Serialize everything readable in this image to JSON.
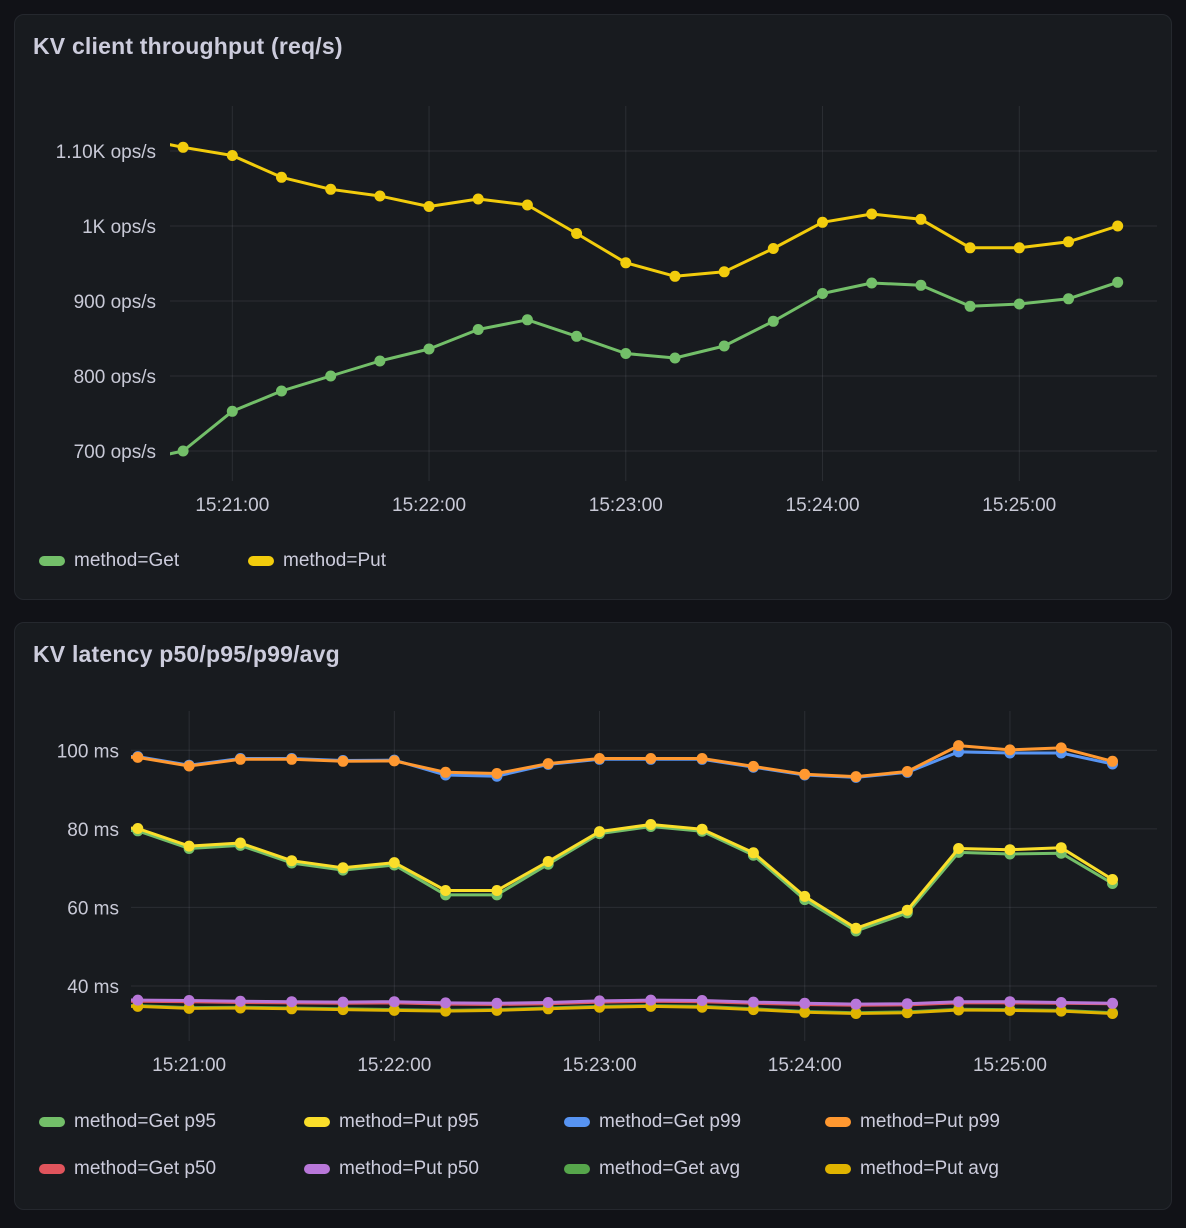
{
  "panels": [
    {
      "title": "KV client throughput (req/s)",
      "legend": [
        {
          "label": "method=Get",
          "color": "#73bf69"
        },
        {
          "label": "method=Put",
          "color": "#f2cc0c"
        }
      ]
    },
    {
      "title": "KV latency p50/p95/p99/avg",
      "legend": [
        {
          "label": "method=Get p95",
          "color": "#73bf69"
        },
        {
          "label": "method=Put p95",
          "color": "#fade2a"
        },
        {
          "label": "method=Get p99",
          "color": "#5794f2"
        },
        {
          "label": "method=Put p99",
          "color": "#ff9830"
        },
        {
          "label": "method=Get p50",
          "color": "#e0545c"
        },
        {
          "label": "method=Put p50",
          "color": "#b877d9"
        },
        {
          "label": "method=Get avg",
          "color": "#56a64b"
        },
        {
          "label": "method=Put avg",
          "color": "#e0b400"
        }
      ]
    }
  ],
  "chart_data": [
    {
      "type": "line",
      "title": "KV client throughput (req/s)",
      "xlabel": "",
      "ylabel": "ops/s",
      "grid": true,
      "legend_position": "bottom",
      "xlim": [
        "15:20:41",
        "15:25:42"
      ],
      "ylim": [
        660,
        1160
      ],
      "x_tick_labels": [
        "15:21:00",
        "15:22:00",
        "15:23:00",
        "15:24:00",
        "15:25:00"
      ],
      "y_ticks": [
        {
          "value": 700,
          "label": "700 ops/s"
        },
        {
          "value": 800,
          "label": "800 ops/s"
        },
        {
          "value": 900,
          "label": "900 ops/s"
        },
        {
          "value": 1000,
          "label": "1K ops/s"
        },
        {
          "value": 1100,
          "label": "1.10K ops/s"
        }
      ],
      "x": [
        "15:20:30",
        "15:20:45",
        "15:21:00",
        "15:21:15",
        "15:21:30",
        "15:21:45",
        "15:22:00",
        "15:22:15",
        "15:22:30",
        "15:22:45",
        "15:23:00",
        "15:23:15",
        "15:23:30",
        "15:23:45",
        "15:24:00",
        "15:24:15",
        "15:24:30",
        "15:24:45",
        "15:25:00",
        "15:25:15",
        "15:25:30"
      ],
      "series": [
        {
          "name": "method=Get",
          "color": "#73bf69",
          "values": [
            686,
            700,
            753,
            780,
            800,
            820,
            836,
            862,
            875,
            853,
            830,
            824,
            840,
            873,
            910,
            924,
            921,
            893,
            896,
            903,
            925
          ]
        },
        {
          "name": "method=Put",
          "color": "#f2cc0c",
          "values": [
            1118,
            1105,
            1094,
            1065,
            1049,
            1040,
            1026,
            1036,
            1028,
            990,
            951,
            933,
            939,
            970,
            1005,
            1016,
            1009,
            971,
            971,
            979,
            1000
          ]
        }
      ]
    },
    {
      "type": "line",
      "title": "KV latency p50/p95/p99/avg",
      "xlabel": "",
      "ylabel": "ms",
      "grid": true,
      "legend_position": "bottom",
      "xlim": [
        "15:20:43",
        "15:25:43"
      ],
      "ylim": [
        26,
        110
      ],
      "x_tick_labels": [
        "15:21:00",
        "15:22:00",
        "15:23:00",
        "15:24:00",
        "15:25:00"
      ],
      "y_ticks": [
        {
          "value": 40,
          "label": "40 ms"
        },
        {
          "value": 60,
          "label": "60 ms"
        },
        {
          "value": 80,
          "label": "80 ms"
        },
        {
          "value": 100,
          "label": "100 ms"
        }
      ],
      "x": [
        "15:20:30",
        "15:20:45",
        "15:21:00",
        "15:21:15",
        "15:21:30",
        "15:21:45",
        "15:22:00",
        "15:22:15",
        "15:22:30",
        "15:22:45",
        "15:23:00",
        "15:23:15",
        "15:23:30",
        "15:23:45",
        "15:24:00",
        "15:24:15",
        "15:24:30",
        "15:24:45",
        "15:25:00",
        "15:25:15",
        "15:25:30"
      ],
      "series": [
        {
          "name": "method=Get p95",
          "color": "#73bf69",
          "values": [
            80.2,
            79.5,
            75.0,
            75.8,
            71.3,
            69.5,
            70.8,
            63.2,
            63.2,
            71.0,
            78.8,
            80.6,
            79.4,
            73.3,
            62.0,
            54.0,
            58.6,
            74.0,
            73.6,
            73.8,
            66.1
          ]
        },
        {
          "name": "method=Put p95",
          "color": "#fade2a",
          "values": [
            80.8,
            80.1,
            75.6,
            76.4,
            71.9,
            70.1,
            71.4,
            64.3,
            64.3,
            71.7,
            79.3,
            81.1,
            79.9,
            73.9,
            62.8,
            54.7,
            59.3,
            75.0,
            74.7,
            75.2,
            67.1
          ]
        },
        {
          "name": "method=Get p99",
          "color": "#5794f2",
          "values": [
            98.6,
            98.4,
            96.2,
            97.9,
            97.9,
            97.4,
            97.5,
            93.7,
            93.4,
            96.4,
            97.7,
            97.7,
            97.7,
            95.7,
            93.7,
            93.1,
            94.4,
            99.6,
            99.3,
            99.3,
            96.5
          ]
        },
        {
          "name": "method=Put p99",
          "color": "#ff9830",
          "values": [
            98.4,
            98.2,
            96.0,
            97.7,
            97.7,
            97.2,
            97.3,
            94.4,
            94.1,
            96.6,
            97.9,
            97.9,
            97.9,
            95.9,
            93.9,
            93.3,
            94.6,
            101.2,
            100.1,
            100.6,
            97.2
          ]
        },
        {
          "name": "method=Get p50",
          "color": "#e0545c",
          "values": [
            36.2,
            36.1,
            36.0,
            35.8,
            35.7,
            35.6,
            35.7,
            35.4,
            35.3,
            35.5,
            35.9,
            36.1,
            36.0,
            35.6,
            35.3,
            35.1,
            35.2,
            35.7,
            35.7,
            35.6,
            35.5
          ]
        },
        {
          "name": "method=Put p50",
          "color": "#b877d9",
          "values": [
            36.5,
            36.4,
            36.3,
            36.1,
            36.0,
            35.9,
            36.0,
            35.7,
            35.6,
            35.8,
            36.2,
            36.4,
            36.3,
            35.9,
            35.6,
            35.4,
            35.5,
            36.0,
            36.0,
            35.8,
            35.6
          ]
        },
        {
          "name": "method=Get avg",
          "color": "#56a64b",
          "values": [
            35.1,
            35.0,
            34.5,
            34.6,
            34.4,
            34.2,
            34.0,
            33.8,
            34.0,
            34.4,
            34.8,
            35.0,
            34.8,
            34.2,
            33.5,
            33.2,
            33.4,
            34.1,
            34.0,
            33.8,
            33.2
          ]
        },
        {
          "name": "method=Put avg",
          "color": "#e0b400",
          "values": [
            34.9,
            34.8,
            34.3,
            34.4,
            34.2,
            34.0,
            33.8,
            33.6,
            33.8,
            34.2,
            34.6,
            34.8,
            34.6,
            34.0,
            33.3,
            33.0,
            33.2,
            33.9,
            33.8,
            33.6,
            33.0
          ]
        }
      ]
    }
  ]
}
